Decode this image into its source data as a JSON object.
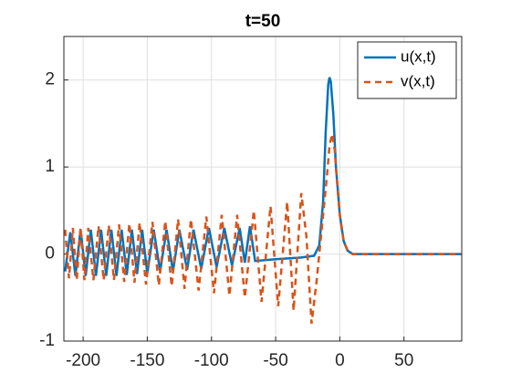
{
  "chart_data": {
    "type": "line",
    "title": "t=50",
    "xlim": [
      -215,
      95
    ],
    "xticks": [
      -200,
      -150,
      -100,
      -50,
      0,
      50
    ],
    "ylim": [
      -1,
      2.5
    ],
    "yticks": [
      -1,
      0,
      1,
      2
    ],
    "grid": true,
    "legend_position": "northeast",
    "series": [
      {
        "name": "u(x,t)",
        "color": "#0072BD",
        "style": "solid",
        "x": [
          -214,
          -210,
          -206,
          -202,
          -198,
          -194,
          -190,
          -186,
          -182,
          -178,
          -174,
          -170,
          -166,
          -162,
          -158,
          -154,
          -150,
          -145,
          -140,
          -135,
          -130,
          -125,
          -119,
          -114,
          -108,
          -102,
          -96,
          -90,
          -84,
          -78,
          -74,
          -70,
          -66,
          -50,
          -30,
          -20,
          -16,
          -13,
          -11,
          -9,
          -8,
          -7,
          -5,
          -3,
          0,
          3,
          6,
          10,
          95
        ],
        "values": [
          -0.2,
          0.25,
          -0.25,
          0.28,
          -0.25,
          0.28,
          -0.25,
          0.28,
          -0.25,
          0.28,
          -0.25,
          0.28,
          -0.24,
          0.28,
          -0.23,
          0.28,
          -0.22,
          0.28,
          -0.2,
          0.28,
          -0.2,
          0.28,
          -0.18,
          0.28,
          -0.17,
          0.3,
          -0.15,
          0.3,
          -0.13,
          0.3,
          -0.1,
          0.32,
          -0.08,
          -0.06,
          -0.04,
          -0.02,
          0.1,
          0.6,
          1.4,
          1.95,
          2.03,
          1.98,
          1.6,
          1.0,
          0.45,
          0.15,
          0.04,
          0,
          0
        ]
      },
      {
        "name": "v(x,t)",
        "color": "#D95319",
        "style": "dashed",
        "x": [
          -214,
          -211,
          -208,
          -205,
          -202,
          -199,
          -196,
          -192,
          -188,
          -184,
          -180,
          -176,
          -172,
          -168,
          -164,
          -160,
          -156,
          -151,
          -146,
          -141,
          -136,
          -131,
          -126,
          -121,
          -116,
          -110,
          -104,
          -98,
          -92,
          -86,
          -80,
          -74,
          -67,
          -61,
          -54,
          -48,
          -41,
          -36,
          -30,
          -26,
          -22,
          -18,
          -14,
          -10,
          -8,
          -6,
          -4,
          -2,
          0,
          3,
          6,
          10,
          95
        ],
        "values": [
          0.28,
          -0.28,
          0.3,
          -0.3,
          0.3,
          -0.3,
          0.3,
          -0.3,
          0.32,
          -0.3,
          0.33,
          -0.3,
          0.34,
          -0.32,
          0.35,
          -0.33,
          0.36,
          -0.35,
          0.37,
          -0.36,
          0.38,
          -0.37,
          0.4,
          -0.4,
          0.4,
          -0.42,
          0.43,
          -0.45,
          0.45,
          -0.48,
          0.45,
          -0.5,
          0.5,
          -0.55,
          0.55,
          -0.6,
          0.6,
          -0.65,
          0.7,
          0.2,
          -0.8,
          -0.3,
          0.3,
          0.9,
          1.25,
          1.38,
          1.2,
          0.8,
          0.45,
          0.15,
          0.04,
          0,
          0
        ]
      }
    ]
  }
}
